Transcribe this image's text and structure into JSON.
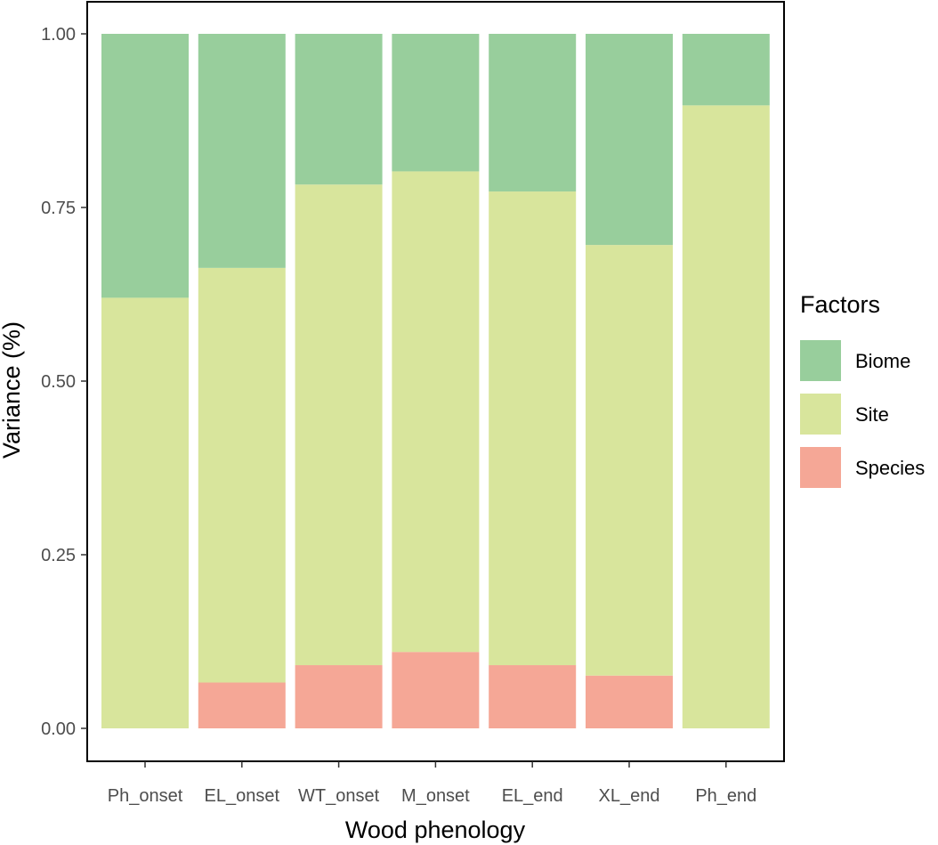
{
  "chart_data": {
    "type": "bar",
    "stacked": true,
    "title": "",
    "xlabel": "Wood phenology",
    "ylabel": "Variance (%)",
    "categories": [
      "Ph_onset",
      "EL_onset",
      "WT_onset",
      "M_onset",
      "EL_end",
      "XL_end",
      "Ph_end"
    ],
    "ylim": [
      0,
      1
    ],
    "yticks": [
      "0.00",
      "0.25",
      "0.50",
      "0.75",
      "1.00"
    ],
    "grid": false,
    "legend": {
      "title": "Factors",
      "position": "right"
    },
    "series": [
      {
        "name": "Species",
        "color": "#f5a796",
        "values": [
          0.0,
          0.066,
          0.091,
          0.11,
          0.091,
          0.076,
          0.0
        ]
      },
      {
        "name": "Site",
        "color": "#d8e59c",
        "values": [
          0.62,
          0.597,
          0.692,
          0.692,
          0.682,
          0.62,
          0.897
        ]
      },
      {
        "name": "Biome",
        "color": "#98ce9c",
        "values": [
          0.38,
          0.337,
          0.217,
          0.198,
          0.227,
          0.304,
          0.103
        ]
      }
    ]
  }
}
